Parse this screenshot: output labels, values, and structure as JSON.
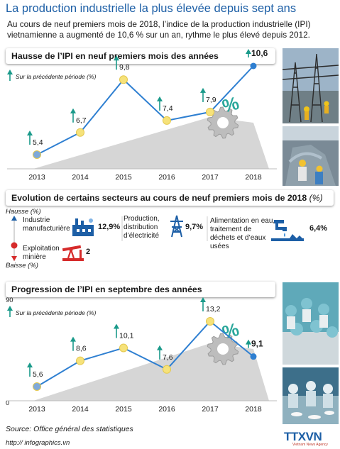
{
  "header": {
    "title": "La production industrielle la plus élevée depuis sept ans",
    "intro": "Au cours de neuf premiers mois de 2018, l’indice de la production industrielle (IPI) vietnamienne a augmenté de 10,6 % sur un an, rythme le plus élevé depuis 2012."
  },
  "section1": {
    "heading": "Hausse de l’IPI en neuf premiers mois des années",
    "note": "Sur la précédente période (%)"
  },
  "section2": {
    "heading": "Evolution de certains secteurs au cours de neuf premiers mois de 2018",
    "unit": "(%)",
    "up_label": "Hausse",
    "down_label": "Baisse",
    "up_unit": "(%)",
    "down_unit": "(%)",
    "sectors": [
      {
        "label": "Industrie manufacturière",
        "value_text": "12,9%",
        "value": 12.9,
        "direction": "up",
        "icon": "factory-icon"
      },
      {
        "label": "Production, distribution d’électricité",
        "value_text": "9,7%",
        "value": 9.7,
        "direction": "up",
        "icon": "power-pylon-icon"
      },
      {
        "label": "Alimentation en eau, traitement de déchets et d’eaux usées",
        "value_text": "6,4%",
        "value": 6.4,
        "direction": "up",
        "icon": "water-tap-icon"
      },
      {
        "label": "Exploitation minière",
        "value_text": "2",
        "value": 2,
        "direction": "down",
        "icon": "oil-pump-icon"
      }
    ]
  },
  "section3": {
    "heading": "Progression de l’IPI en septembre des années",
    "note": "Sur la précédente période (%)",
    "axis_top": "90",
    "axis_bottom": "0"
  },
  "footer": {
    "source": "Source: Office général des statistiques",
    "website": "http:// infographics.vn",
    "brand": "TTXVN",
    "brand_sub": "Vietnam News Agency"
  },
  "colors": {
    "title_blue": "#1d5fa6",
    "line_blue": "#2e7fd1",
    "dot_yellow": "#f6e27a",
    "first_dot_blue": "#7fa9d9",
    "arrow_teal": "#1a9a8a",
    "percent_teal": "#2aa79b",
    "ramp_grey": "#c8c8c8",
    "down_red": "#d62b2b"
  },
  "chart_data": [
    {
      "type": "line",
      "title": "Hausse de l’IPI en neuf premiers mois des années",
      "x": [
        "2013",
        "2014",
        "2015",
        "2016",
        "2017",
        "2018"
      ],
      "series": [
        {
          "values": [
            5.4,
            6.7,
            9.8,
            7.4,
            7.9,
            10.6
          ],
          "labels": [
            "5,4",
            "6,7",
            "9,8",
            "7,4",
            "7,9",
            "10,6"
          ]
        }
      ]
    },
    {
      "type": "line",
      "title": "Progression de l’IPI en septembre des années",
      "x": [
        "2013",
        "2014",
        "2015",
        "2016",
        "2017",
        "2018"
      ],
      "series": [
        {
          "values": [
            5.6,
            8.6,
            10.1,
            7.6,
            13.2,
            9.1
          ],
          "labels": [
            "5,6",
            "8,6",
            "10,1",
            "7,6",
            "13,2",
            "9,1"
          ]
        }
      ]
    }
  ]
}
